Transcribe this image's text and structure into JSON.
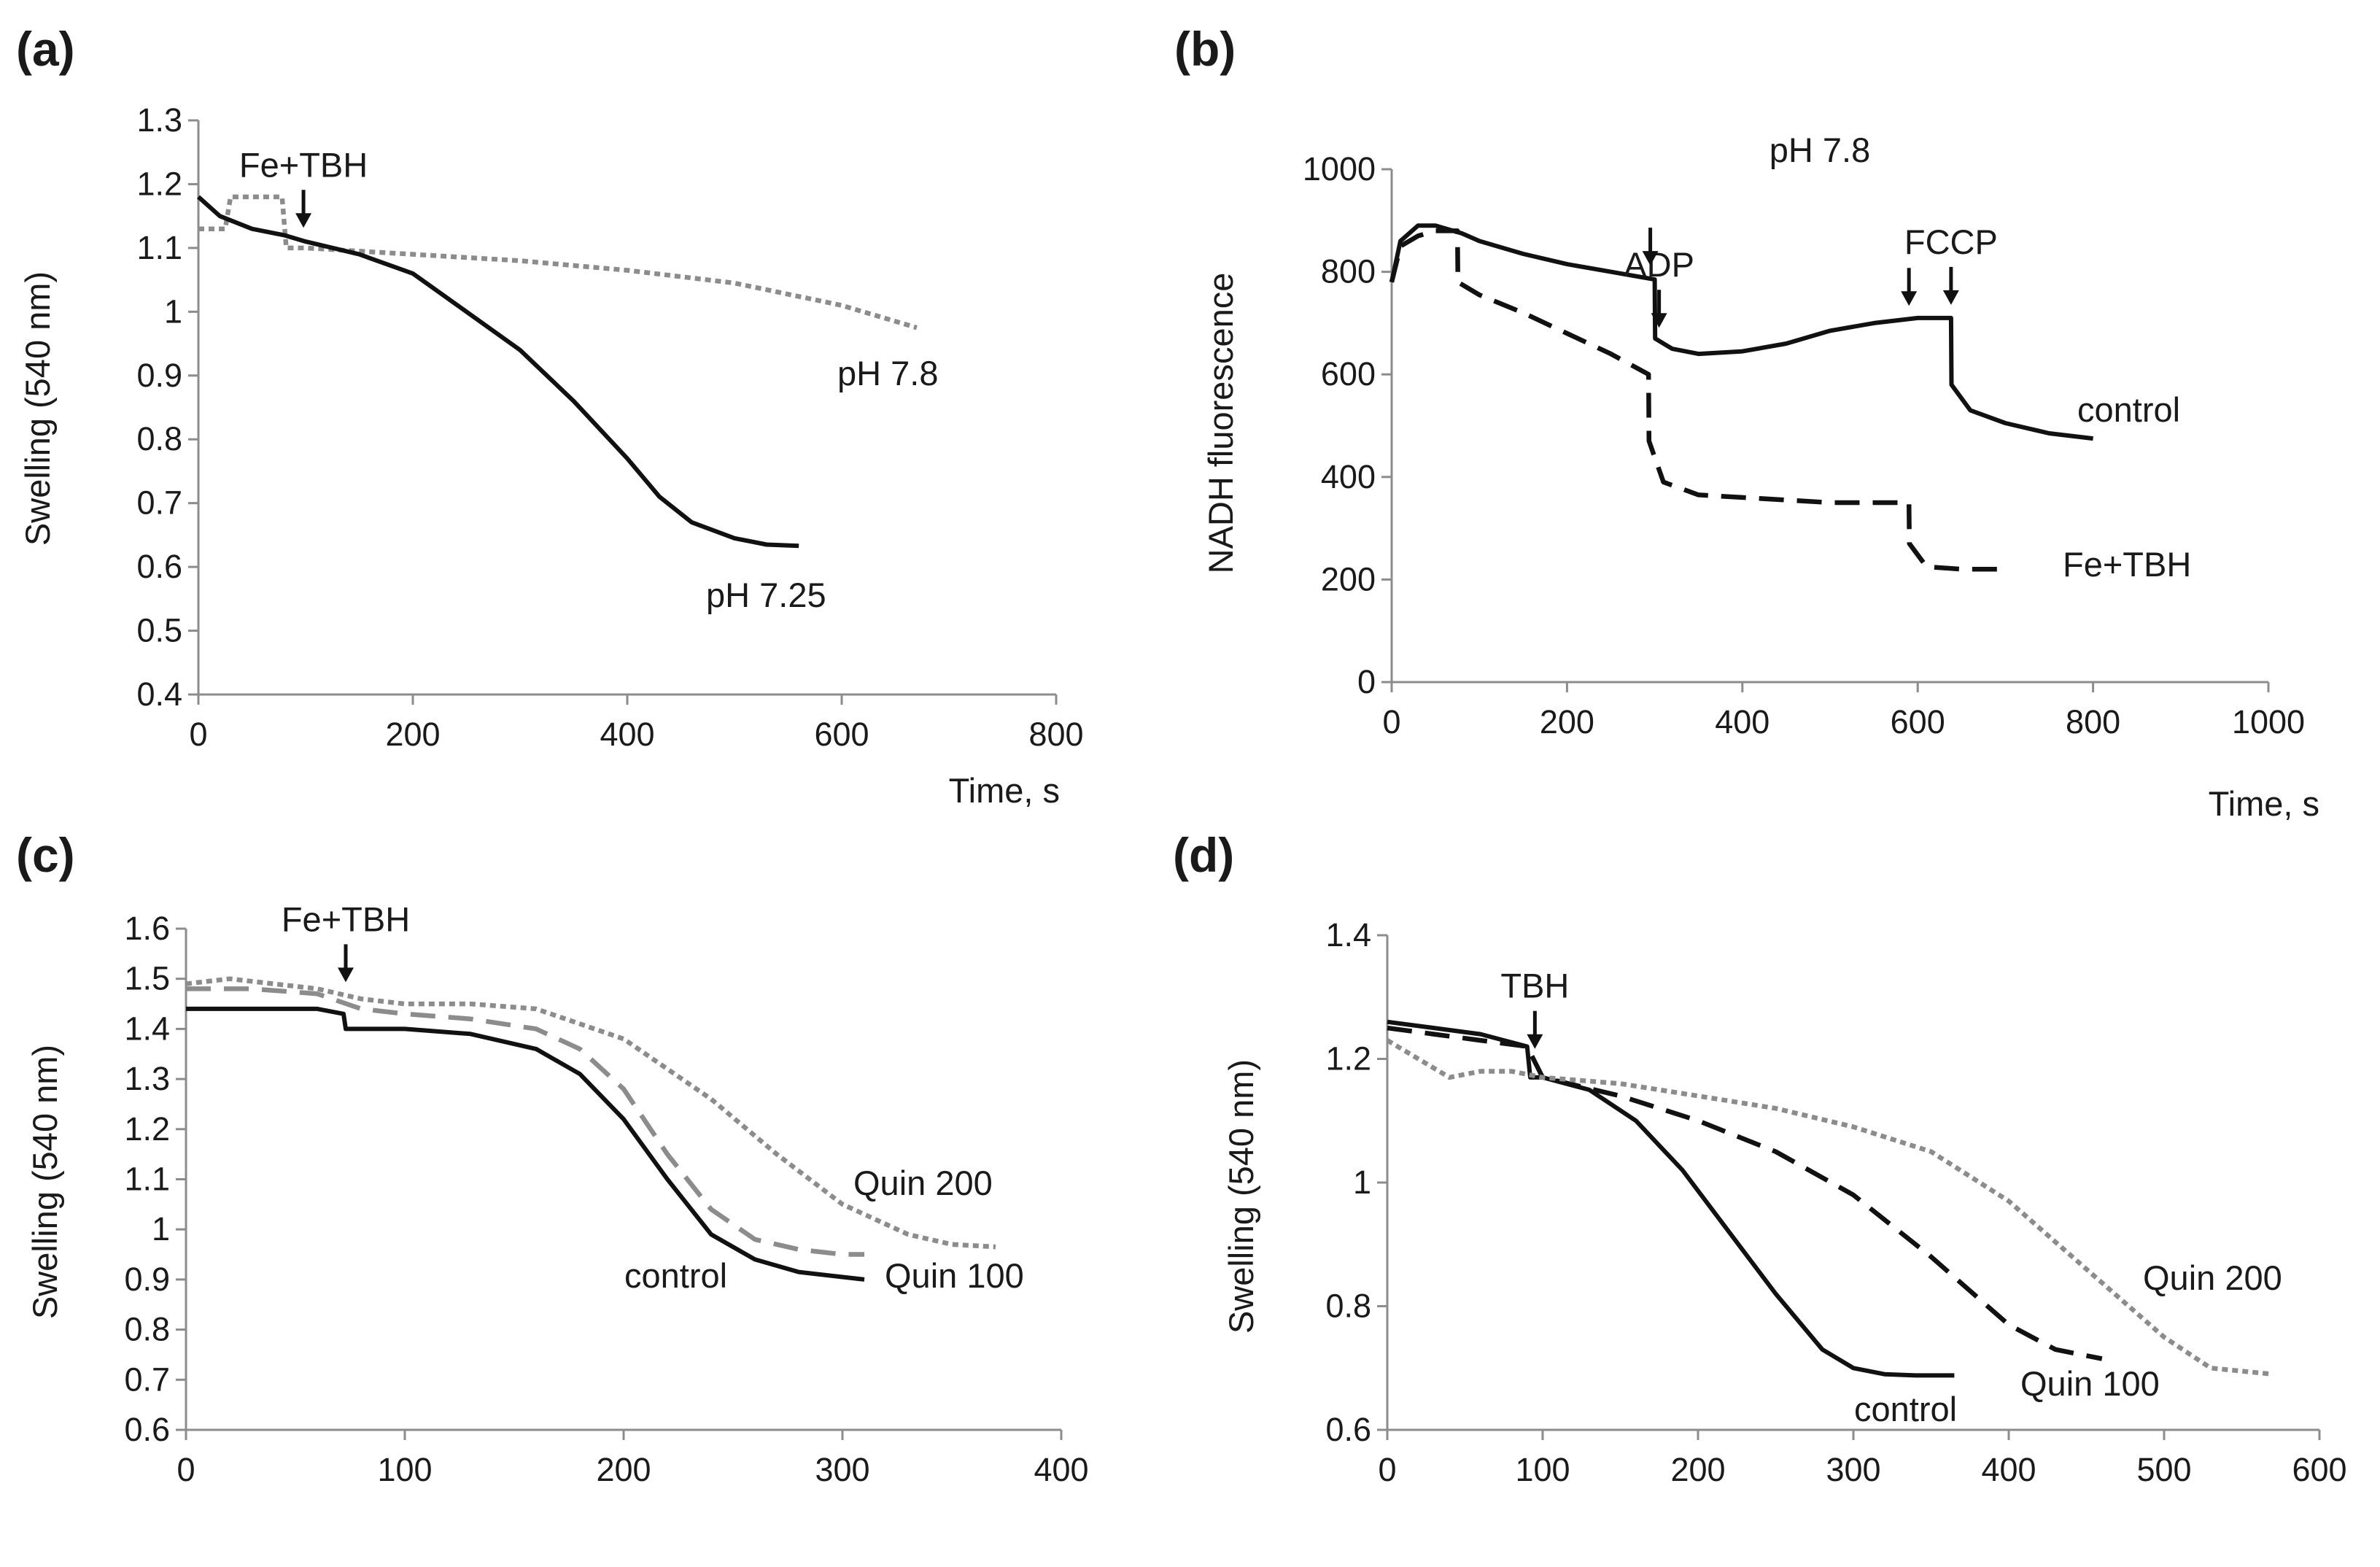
{
  "colors": {
    "black": "#111111",
    "gray": "#8c8c8c"
  },
  "chart_data": [
    {
      "type": "line",
      "panel_label": "(a)",
      "title": "",
      "xlabel": "Time, s",
      "ylabel": "Swelling (540 nm)",
      "xlim": [
        0,
        800
      ],
      "ylim": [
        0.4,
        1.3
      ],
      "xticks": [
        "0",
        "200",
        "400",
        "600",
        "800"
      ],
      "yticks": [
        "0.4",
        "0.5",
        "0.6",
        "0.7",
        "0.8",
        "0.9",
        "1",
        "1.1",
        "1.2",
        "1.3"
      ],
      "arrows": [
        {
          "label": "Fe+TBH",
          "x": 98
        }
      ],
      "series": [
        {
          "name": "pH 7.8",
          "label": "pH 7.8",
          "color": "#8c8c8c",
          "style": "dotted",
          "x": [
            0,
            25,
            30,
            55,
            78,
            82,
            100,
            150,
            200,
            300,
            400,
            500,
            600,
            670
          ],
          "y": [
            1.13,
            1.13,
            1.18,
            1.18,
            1.18,
            1.1,
            1.1,
            1.095,
            1.09,
            1.08,
            1.065,
            1.045,
            1.01,
            0.975
          ]
        },
        {
          "name": "pH 7.25",
          "label": "pH 7.25",
          "color": "#111111",
          "style": "solid",
          "x": [
            0,
            20,
            50,
            80,
            100,
            150,
            200,
            250,
            300,
            350,
            400,
            430,
            460,
            500,
            530,
            560
          ],
          "y": [
            1.18,
            1.15,
            1.13,
            1.12,
            1.11,
            1.09,
            1.06,
            1.0,
            0.94,
            0.86,
            0.77,
            0.71,
            0.67,
            0.645,
            0.635,
            0.633
          ]
        }
      ]
    },
    {
      "type": "line",
      "panel_label": "(b)",
      "title": "pH 7.8",
      "xlabel": "Time, s",
      "ylabel": "NADH fluorescence",
      "xlim": [
        0,
        1000
      ],
      "ylim": [
        0,
        1000
      ],
      "xticks": [
        "0",
        "200",
        "400",
        "600",
        "800",
        "1000"
      ],
      "yticks": [
        "0",
        "200",
        "400",
        "600",
        "800",
        "1000"
      ],
      "arrows": [
        {
          "label": "ADP",
          "x": 305
        },
        {
          "label": "FCCP",
          "x": 638
        },
        {
          "label": "",
          "x": 295
        },
        {
          "label": "",
          "x": 590
        }
      ],
      "series": [
        {
          "name": "control",
          "label": "control",
          "color": "#111111",
          "style": "solid",
          "x": [
            0,
            10,
            30,
            50,
            80,
            100,
            150,
            200,
            250,
            300,
            300.5,
            320,
            350,
            400,
            450,
            500,
            550,
            600,
            638,
            638.5,
            660,
            700,
            750,
            800
          ],
          "y": [
            780,
            860,
            890,
            890,
            875,
            860,
            835,
            815,
            800,
            785,
            670,
            650,
            640,
            645,
            660,
            685,
            700,
            710,
            710,
            580,
            530,
            505,
            485,
            475
          ]
        },
        {
          "name": "Fe+TBH",
          "label": "Fe+TBH",
          "color": "#111111",
          "style": "dashed",
          "x": [
            0,
            10,
            30,
            50,
            75,
            75.5,
            100,
            150,
            200,
            250,
            293,
            293.5,
            310,
            350,
            400,
            450,
            500,
            550,
            590,
            590.5,
            610,
            650,
            700
          ],
          "y": [
            780,
            850,
            870,
            880,
            880,
            780,
            755,
            720,
            680,
            640,
            600,
            470,
            390,
            365,
            360,
            355,
            350,
            350,
            350,
            270,
            225,
            220,
            220
          ]
        }
      ]
    },
    {
      "type": "line",
      "panel_label": "(c)",
      "title": "",
      "xlabel": "Time, s",
      "ylabel": "Swelling (540 nm)",
      "xlim": [
        0,
        400
      ],
      "ylim": [
        0.6,
        1.6
      ],
      "xticks": [
        "0",
        "100",
        "200",
        "300",
        "400"
      ],
      "yticks": [
        "0.6",
        "0.7",
        "0.8",
        "0.9",
        "1",
        "1.1",
        "1.2",
        "1.3",
        "1.4",
        "1.5",
        "1.6"
      ],
      "arrows": [
        {
          "label": "Fe+TBH",
          "x": 73
        }
      ],
      "series": [
        {
          "name": "control",
          "label": "control",
          "color": "#111111",
          "style": "solid",
          "x": [
            0,
            30,
            60,
            72,
            73,
            100,
            130,
            160,
            180,
            200,
            220,
            240,
            260,
            280,
            300,
            310
          ],
          "y": [
            1.44,
            1.44,
            1.44,
            1.43,
            1.4,
            1.4,
            1.39,
            1.36,
            1.31,
            1.22,
            1.1,
            0.99,
            0.94,
            0.915,
            0.905,
            0.9
          ]
        },
        {
          "name": "Quin 100",
          "label": "Quin 100",
          "color": "#8c8c8c",
          "style": "dashed",
          "x": [
            0,
            30,
            60,
            80,
            100,
            130,
            160,
            180,
            200,
            220,
            240,
            260,
            280,
            300,
            310
          ],
          "y": [
            1.48,
            1.48,
            1.47,
            1.44,
            1.43,
            1.42,
            1.4,
            1.36,
            1.28,
            1.15,
            1.04,
            0.98,
            0.96,
            0.95,
            0.95
          ]
        },
        {
          "name": "Quin 200",
          "label": "Quin 200",
          "color": "#8c8c8c",
          "style": "dotted",
          "x": [
            0,
            20,
            40,
            60,
            80,
            100,
            130,
            160,
            200,
            240,
            270,
            300,
            330,
            350,
            370
          ],
          "y": [
            1.49,
            1.5,
            1.49,
            1.48,
            1.46,
            1.45,
            1.45,
            1.44,
            1.38,
            1.26,
            1.15,
            1.05,
            0.99,
            0.97,
            0.965
          ]
        }
      ]
    },
    {
      "type": "line",
      "panel_label": "(d)",
      "title": "",
      "xlabel": "Time, s",
      "ylabel": "Swelling (540 nm)",
      "xlim": [
        0,
        600
      ],
      "ylim": [
        0.6,
        1.4
      ],
      "xticks": [
        "0",
        "100",
        "200",
        "300",
        "400",
        "500",
        "600"
      ],
      "yticks": [
        "0.6",
        "0.8",
        "1",
        "1.2",
        "1.4"
      ],
      "arrows": [
        {
          "label": "TBH",
          "x": 95
        }
      ],
      "series": [
        {
          "name": "control",
          "label": "control",
          "color": "#111111",
          "style": "solid",
          "x": [
            0,
            30,
            60,
            90,
            92,
            100,
            130,
            160,
            190,
            220,
            250,
            280,
            300,
            320,
            340,
            365
          ],
          "y": [
            1.26,
            1.25,
            1.24,
            1.22,
            1.17,
            1.17,
            1.15,
            1.1,
            1.02,
            0.92,
            0.82,
            0.73,
            0.7,
            0.69,
            0.688,
            0.688
          ]
        },
        {
          "name": "Quin 100",
          "label": "Quin 100",
          "color": "#111111",
          "style": "dashed",
          "x": [
            0,
            30,
            60,
            90,
            100,
            150,
            200,
            250,
            300,
            350,
            400,
            430,
            460
          ],
          "y": [
            1.25,
            1.24,
            1.23,
            1.22,
            1.17,
            1.14,
            1.1,
            1.05,
            0.98,
            0.88,
            0.77,
            0.73,
            0.715
          ]
        },
        {
          "name": "Quin 200",
          "label": "Quin 200",
          "color": "#8c8c8c",
          "style": "dotted",
          "x": [
            0,
            20,
            40,
            60,
            80,
            100,
            150,
            200,
            250,
            300,
            350,
            400,
            450,
            500,
            530,
            570
          ],
          "y": [
            1.23,
            1.2,
            1.17,
            1.18,
            1.18,
            1.17,
            1.16,
            1.14,
            1.12,
            1.09,
            1.05,
            0.97,
            0.86,
            0.75,
            0.7,
            0.69
          ]
        }
      ]
    }
  ]
}
